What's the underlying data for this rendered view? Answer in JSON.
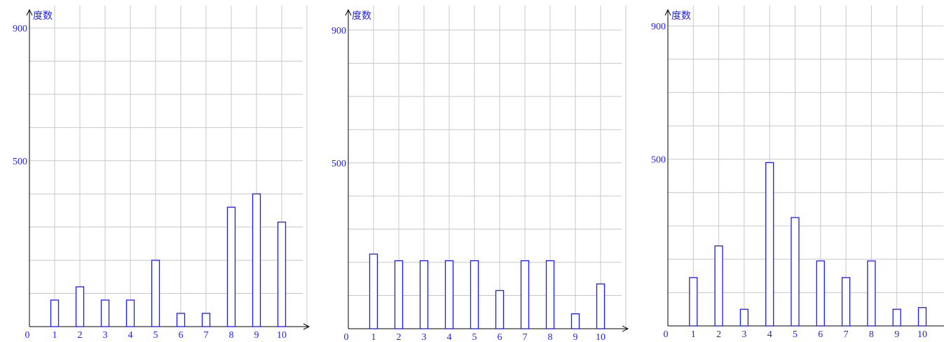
{
  "colors": {
    "bar_stroke": "#1a1aff",
    "label": "#2020ff",
    "grid": "#c8c8c8",
    "axis": "#000000"
  },
  "chart_data": [
    {
      "type": "bar",
      "ylabel": "度数",
      "xlabel": "",
      "origin_label": "0",
      "ylim": [
        0,
        900
      ],
      "y_tick_labels": [
        "500",
        "900"
      ],
      "grid": true,
      "categories": [
        "1",
        "2",
        "3",
        "4",
        "5",
        "6",
        "7",
        "8",
        "9",
        "10"
      ],
      "values": [
        80,
        120,
        80,
        80,
        200,
        40,
        40,
        360,
        400,
        315
      ]
    },
    {
      "type": "bar",
      "ylabel": "度数",
      "xlabel": "",
      "origin_label": "0",
      "ylim": [
        0,
        900
      ],
      "y_tick_labels": [
        "500",
        "900"
      ],
      "grid": true,
      "categories": [
        "1",
        "2",
        "3",
        "4",
        "5",
        "6",
        "7",
        "8",
        "9",
        "10"
      ],
      "values": [
        225,
        205,
        205,
        205,
        205,
        115,
        205,
        205,
        45,
        135
      ]
    },
    {
      "type": "bar",
      "ylabel": "度数",
      "xlabel": "",
      "origin_label": "0",
      "ylim": [
        0,
        900
      ],
      "y_tick_labels": [
        "500",
        "900"
      ],
      "grid": true,
      "categories": [
        "1",
        "2",
        "3",
        "4",
        "5",
        "6",
        "7",
        "8",
        "9",
        "10"
      ],
      "values": [
        145,
        240,
        50,
        490,
        325,
        195,
        145,
        195,
        50,
        55
      ]
    }
  ]
}
